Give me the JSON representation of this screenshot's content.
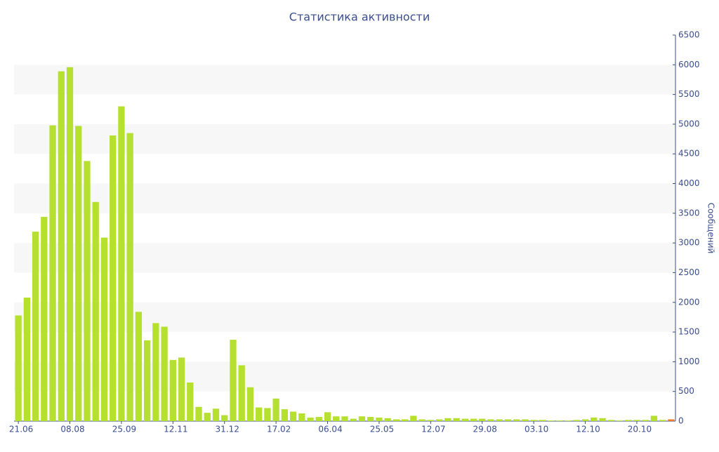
{
  "chart_data": {
    "type": "bar",
    "title": "Статистика активности",
    "y_label": "Сообщений",
    "categories": [
      "21.06",
      null,
      null,
      null,
      null,
      null,
      "08.08",
      null,
      null,
      null,
      null,
      null,
      "25.09",
      null,
      null,
      null,
      null,
      null,
      "12.11",
      null,
      null,
      null,
      null,
      null,
      "31.12",
      null,
      null,
      null,
      null,
      null,
      "17.02",
      null,
      null,
      null,
      null,
      null,
      "06.04",
      null,
      null,
      null,
      null,
      null,
      "25.05",
      null,
      null,
      null,
      null,
      null,
      "12.07",
      null,
      null,
      null,
      null,
      null,
      "29.08",
      null,
      null,
      null,
      null,
      null,
      "03.10",
      null,
      null,
      null,
      null,
      null,
      "12.10",
      null,
      null,
      null,
      null,
      null,
      "20.10",
      null,
      null,
      null,
      null
    ],
    "values": [
      1780,
      2080,
      3190,
      3440,
      4980,
      5890,
      5960,
      4970,
      4380,
      3690,
      3090,
      4810,
      5300,
      4850,
      1840,
      1360,
      1650,
      1590,
      1030,
      1070,
      650,
      240,
      140,
      210,
      100,
      1370,
      940,
      570,
      230,
      220,
      380,
      200,
      160,
      130,
      60,
      70,
      150,
      80,
      80,
      40,
      80,
      70,
      60,
      50,
      30,
      30,
      90,
      30,
      20,
      30,
      50,
      50,
      40,
      40,
      40,
      30,
      30,
      30,
      30,
      30,
      20,
      20,
      10,
      10,
      10,
      20,
      30,
      60,
      50,
      20,
      10,
      20,
      20,
      20,
      90,
      20,
      30
    ],
    "color": "#b5e02f",
    "last_color": "#f07a2a",
    "ylim": [
      0,
      6500
    ],
    "yticks": [
      0,
      500,
      1000,
      1500,
      2000,
      2500,
      3000,
      3500,
      4000,
      4500,
      5000,
      5500,
      6000,
      6500
    ],
    "grid": "bands",
    "y_axis_side": "right"
  }
}
